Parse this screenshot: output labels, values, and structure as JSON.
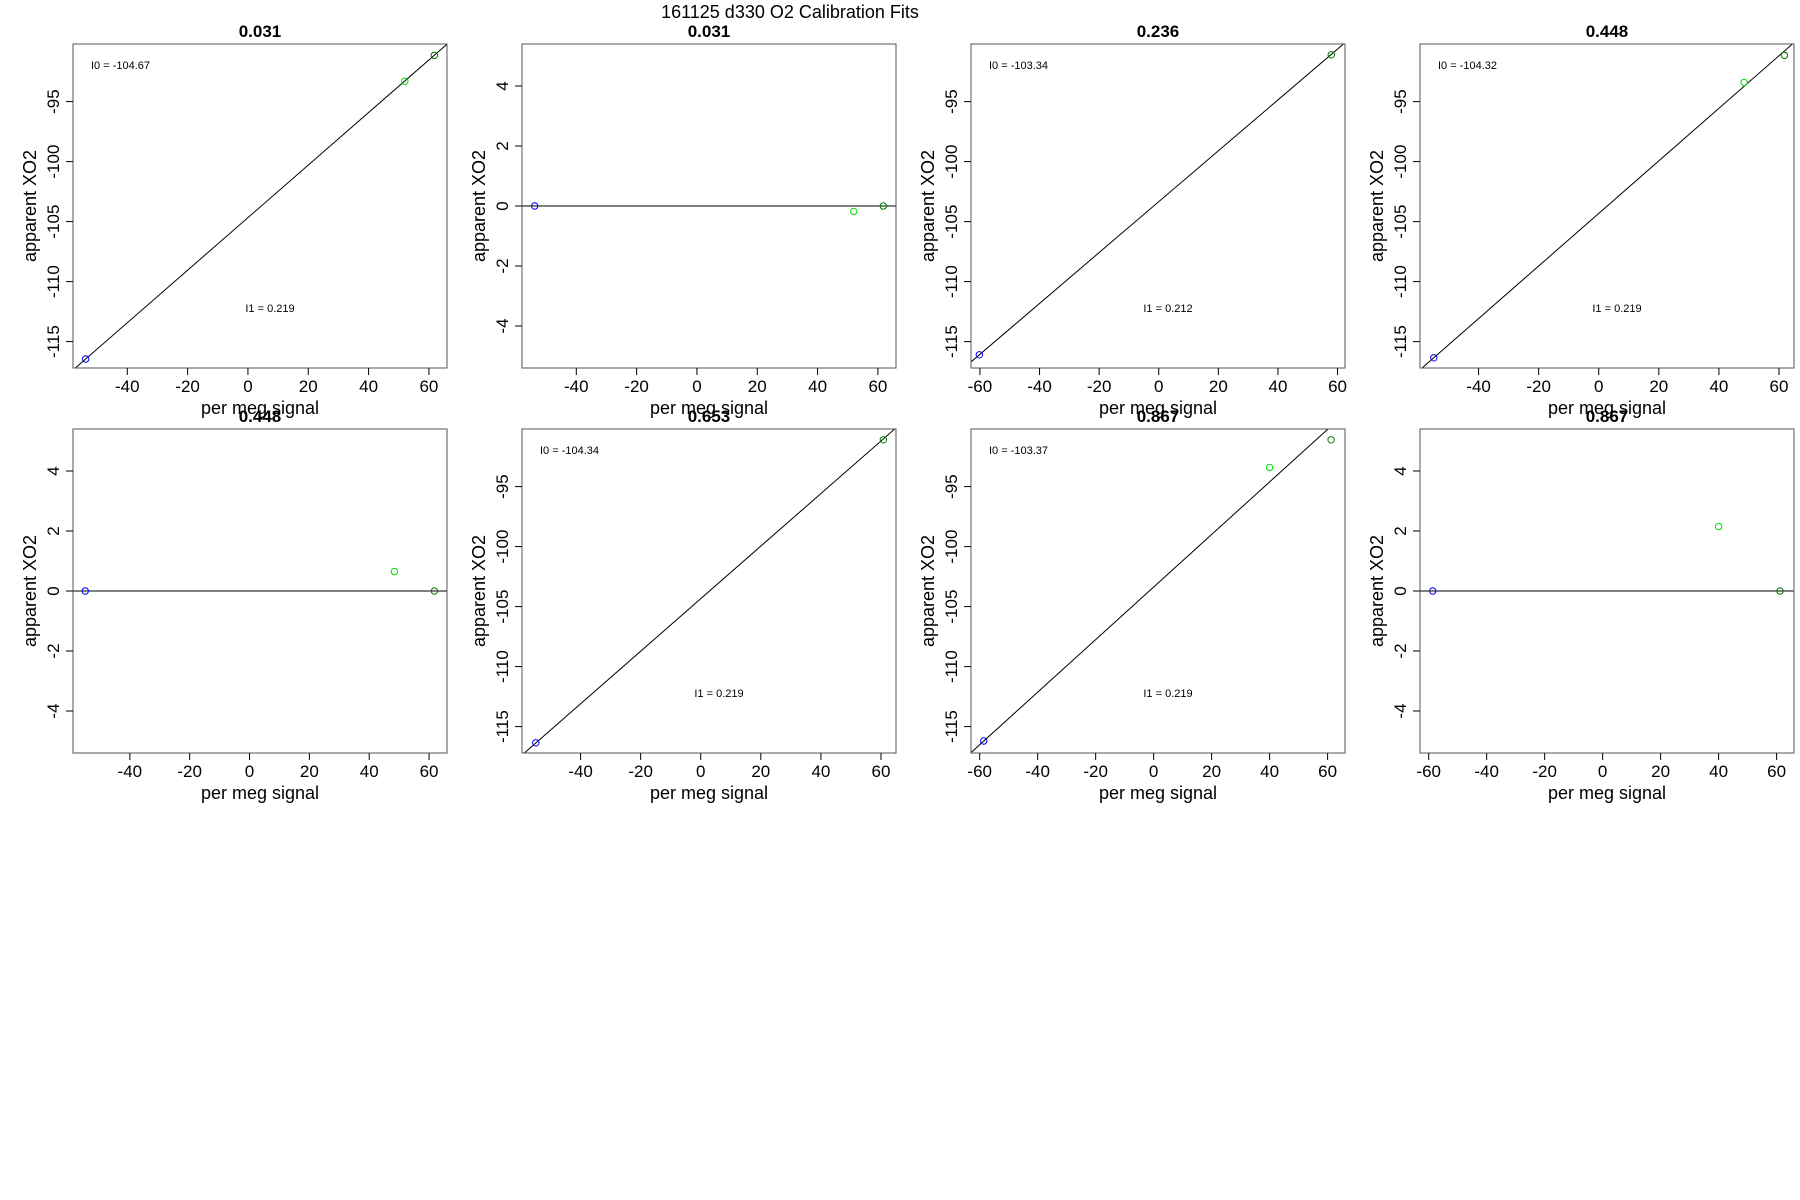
{
  "figure": {
    "title": "161125   d330   O2 Calibration Fits",
    "colors": {
      "frame": "#555555",
      "fit_line": "#000000",
      "blue": "#0000ff",
      "green_light": "#00e000",
      "green_dark": "#007a00"
    }
  },
  "chart_data": [
    {
      "type": "scatter",
      "title": "0.031",
      "xlabel": "per meg signal",
      "ylabel": "apparent XO2",
      "xlim": [
        -58,
        66
      ],
      "ylim": [
        -117.2,
        -90.2
      ],
      "xticks": [
        "-40",
        "-20",
        "0",
        "20",
        "40",
        "60"
      ],
      "yticks": [
        "-95",
        "-100",
        "-105",
        "-110",
        "-115"
      ],
      "annotations": [
        "I0 =  -104.67",
        "I1 =  0.219"
      ],
      "fit_line": {
        "slope": 0.219,
        "intercept": -104.67
      },
      "points": [
        {
          "x": -53.8,
          "y": -116.45,
          "color": "blue"
        },
        {
          "x": 52.0,
          "y": -93.3,
          "color": "green_light"
        },
        {
          "x": 61.8,
          "y": -91.15,
          "color": "green_dark"
        }
      ]
    },
    {
      "type": "scatter",
      "title": "0.031",
      "xlabel": "per meg signal",
      "ylabel": "apparent XO2",
      "xlim": [
        -58,
        66
      ],
      "ylim": [
        -5.4,
        5.4
      ],
      "xticks": [
        "-40",
        "-20",
        "0",
        "20",
        "40",
        "60"
      ],
      "yticks": [
        "4",
        "2",
        "0",
        "-2",
        "-4"
      ],
      "annotations": [],
      "fit_line": {
        "slope": 0,
        "intercept": 0
      },
      "points": [
        {
          "x": -53.8,
          "y": 0.0,
          "color": "blue"
        },
        {
          "x": 52.0,
          "y": -0.18,
          "color": "green_light"
        },
        {
          "x": 61.8,
          "y": 0.0,
          "color": "green_dark"
        }
      ]
    },
    {
      "type": "scatter",
      "title": "0.236",
      "xlabel": "per meg signal",
      "ylabel": "apparent XO2",
      "xlim": [
        -63,
        62.5
      ],
      "ylim": [
        -117.2,
        -90.2
      ],
      "xticks": [
        "-60",
        "-40",
        "-20",
        "0",
        "20",
        "40",
        "60"
      ],
      "yticks": [
        "-95",
        "-100",
        "-105",
        "-110",
        "-115"
      ],
      "annotations": [
        "I0 =  -103.34",
        "I1 =  0.212"
      ],
      "fit_line": {
        "slope": 0.212,
        "intercept": -103.34
      },
      "points": [
        {
          "x": -60.2,
          "y": -116.1,
          "color": "blue"
        },
        {
          "x": 57.9,
          "y": -91.1,
          "color": "green_dark"
        }
      ]
    },
    {
      "type": "scatter",
      "title": "0.448",
      "xlabel": "per meg signal",
      "ylabel": "apparent XO2",
      "xlim": [
        -59.5,
        65
      ],
      "ylim": [
        -117.2,
        -90.2
      ],
      "xticks": [
        "-40",
        "-20",
        "0",
        "20",
        "40",
        "60"
      ],
      "yticks": [
        "-95",
        "-100",
        "-105",
        "-110",
        "-115"
      ],
      "annotations": [
        "I0 =  -104.32",
        "I1 =  0.219"
      ],
      "fit_line": {
        "slope": 0.219,
        "intercept": -104.32
      },
      "points": [
        {
          "x": -54.9,
          "y": -116.35,
          "color": "blue"
        },
        {
          "x": 48.4,
          "y": -93.4,
          "color": "green_light"
        },
        {
          "x": 61.8,
          "y": -91.15,
          "color": "green_dark"
        }
      ]
    },
    {
      "type": "scatter",
      "title": "0.448",
      "xlabel": "per meg signal",
      "ylabel": "apparent XO2",
      "xlim": [
        -59,
        66
      ],
      "ylim": [
        -5.4,
        5.4
      ],
      "xticks": [
        "-40",
        "-20",
        "0",
        "20",
        "40",
        "60"
      ],
      "yticks": [
        "4",
        "2",
        "0",
        "-2",
        "-4"
      ],
      "annotations": [],
      "fit_line": {
        "slope": 0,
        "intercept": 0
      },
      "points": [
        {
          "x": -54.9,
          "y": 0.0,
          "color": "blue"
        },
        {
          "x": 48.4,
          "y": 0.65,
          "color": "green_light"
        },
        {
          "x": 61.8,
          "y": 0.0,
          "color": "green_dark"
        }
      ]
    },
    {
      "type": "scatter",
      "title": "0.653",
      "xlabel": "per meg signal",
      "ylabel": "apparent XO2",
      "xlim": [
        -59.5,
        65
      ],
      "ylim": [
        -117.2,
        -90.2
      ],
      "xticks": [
        "-40",
        "-20",
        "0",
        "20",
        "40",
        "60"
      ],
      "yticks": [
        "-95",
        "-100",
        "-105",
        "-110",
        "-115"
      ],
      "annotations": [
        "I0 =  -104.34",
        "I1 =  0.219"
      ],
      "fit_line": {
        "slope": 0.219,
        "intercept": -104.34
      },
      "points": [
        {
          "x": -54.9,
          "y": -116.35,
          "color": "blue"
        },
        {
          "x": 60.8,
          "y": -91.1,
          "color": "green_dark"
        }
      ]
    },
    {
      "type": "scatter",
      "title": "0.867",
      "xlabel": "per meg signal",
      "ylabel": "apparent XO2",
      "xlim": [
        -63,
        66
      ],
      "ylim": [
        -117.2,
        -90.2
      ],
      "xticks": [
        "-60",
        "-40",
        "-20",
        "0",
        "20",
        "40",
        "60"
      ],
      "yticks": [
        "-95",
        "-100",
        "-105",
        "-110",
        "-115"
      ],
      "annotations": [
        "I0 =  -103.37",
        "I1 =  0.219"
      ],
      "fit_line": {
        "slope": 0.219,
        "intercept": -103.37
      },
      "points": [
        {
          "x": -58.6,
          "y": -116.2,
          "color": "blue"
        },
        {
          "x": 40.0,
          "y": -93.4,
          "color": "green_light"
        },
        {
          "x": 61.2,
          "y": -91.1,
          "color": "green_dark"
        }
      ]
    },
    {
      "type": "scatter",
      "title": "0.867",
      "xlabel": "per meg signal",
      "ylabel": "apparent XO2",
      "xlim": [
        -63,
        66
      ],
      "ylim": [
        -5.4,
        5.4
      ],
      "xticks": [
        "-60",
        "-40",
        "-20",
        "0",
        "20",
        "40",
        "60"
      ],
      "yticks": [
        "4",
        "2",
        "0",
        "-2",
        "-4"
      ],
      "annotations": [],
      "fit_line": {
        "slope": 0,
        "intercept": 0
      },
      "points": [
        {
          "x": -58.6,
          "y": 0.0,
          "color": "blue"
        },
        {
          "x": 40.0,
          "y": 2.15,
          "color": "green_light"
        },
        {
          "x": 61.2,
          "y": 0.0,
          "color": "green_dark"
        }
      ]
    }
  ]
}
